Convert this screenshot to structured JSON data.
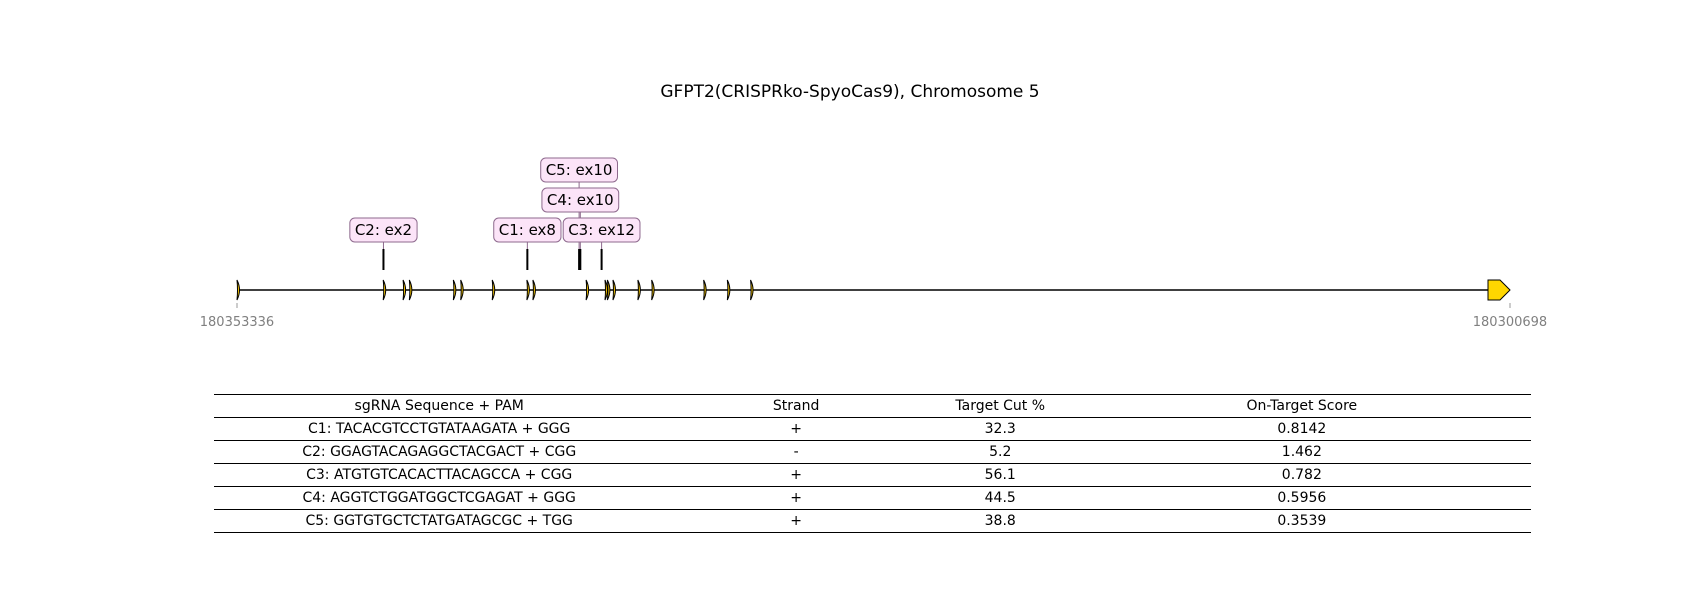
{
  "title": "GFPT2(CRISPRko-SpyoCas9), Chromosome 5",
  "gene": {
    "start_coord": 180353336,
    "end_coord": 180300698,
    "start_label": "180353336",
    "end_label": "180300698",
    "exons": [
      180353336,
      180347290,
      180346468,
      180346209,
      180344390,
      180344086,
      180342782,
      180341350,
      180341100,
      180338900,
      180338120,
      180338020,
      180337790,
      180336760,
      180336190,
      180334040,
      180333060,
      180332100
    ],
    "exon_color": "#f5c400",
    "utr_color": "#ffd700"
  },
  "guides": [
    {
      "label": "C2: ex2",
      "coord": 180347280,
      "tier": 0
    },
    {
      "label": "C1: ex8",
      "coord": 180341330,
      "tier": 0
    },
    {
      "label": "C5: ex10",
      "coord": 180339190,
      "tier": 2
    },
    {
      "label": "C4: ex10",
      "coord": 180339140,
      "tier": 1
    },
    {
      "label": "C3: ex12",
      "coord": 180338260,
      "tier": 0
    }
  ],
  "label_box": {
    "fill": "#fce4f8",
    "stroke": "#8e6a8e"
  },
  "table": {
    "headers": [
      "sgRNA Sequence + PAM",
      "Strand",
      "Target Cut %",
      "On-Target Score"
    ],
    "rows": [
      [
        "C1: TACACGTCCTGTATAAGATA + GGG",
        "+",
        "32.3",
        "0.8142"
      ],
      [
        "C2: GGAGTACAGAGGCTACGACT + CGG",
        "-",
        "5.2",
        "1.462"
      ],
      [
        "C3: ATGTGTCACACTTACAGCCA + CGG",
        "+",
        "56.1",
        "0.782"
      ],
      [
        "C4: AGGTCTGGATGGCTCGAGAT + GGG",
        "+",
        "44.5",
        "0.5956"
      ],
      [
        "C5: GGTGTGCTCTATGATAGCGC + TGG",
        "+",
        "38.8",
        "0.3539"
      ]
    ]
  }
}
